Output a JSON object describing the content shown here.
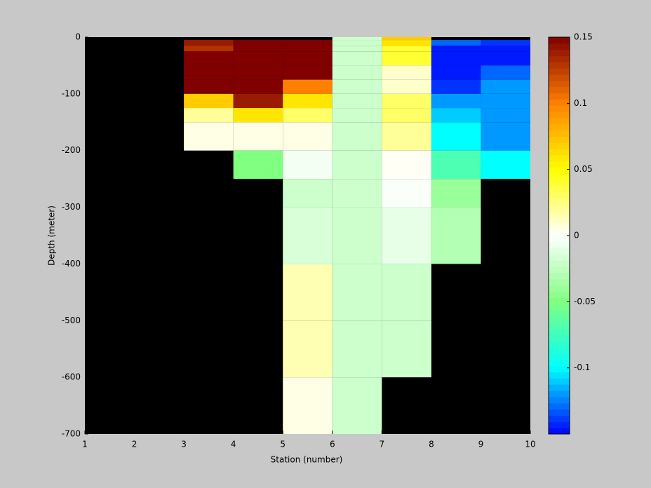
{
  "chart_data": {
    "type": "heatmap",
    "xlabel": "Station (number)",
    "ylabel": "Depth (meter)",
    "x": [
      1,
      2,
      3,
      4,
      5,
      6,
      7,
      8,
      9,
      10
    ],
    "y": [
      0,
      -5,
      -15,
      -25,
      -50,
      -75,
      -100,
      -125,
      -150,
      -200,
      -250,
      -300,
      -350,
      -400,
      -500,
      -600,
      -700
    ],
    "values": [
      [
        null,
        null,
        null,
        null,
        null,
        -0.02,
        0.07,
        null,
        null
      ],
      [
        null,
        null,
        0.14,
        0.15,
        0.15,
        -0.02,
        0.06,
        -0.13,
        -0.14
      ],
      [
        null,
        null,
        0.13,
        0.15,
        0.15,
        -0.02,
        0.04,
        -0.145,
        -0.145
      ],
      [
        null,
        null,
        0.15,
        0.15,
        0.15,
        -0.02,
        0.04,
        -0.145,
        -0.145
      ],
      [
        null,
        null,
        0.15,
        0.15,
        0.15,
        -0.02,
        0.01,
        -0.145,
        -0.13
      ],
      [
        null,
        null,
        0.15,
        0.15,
        0.1,
        -0.02,
        0.01,
        -0.14,
        -0.12
      ],
      [
        null,
        null,
        0.07,
        0.14,
        0.06,
        -0.02,
        0.03,
        -0.12,
        -0.12
      ],
      [
        null,
        null,
        0.02,
        0.06,
        0.03,
        -0.02,
        0.03,
        -0.11,
        -0.12
      ],
      [
        null,
        null,
        0.005,
        0.005,
        0.005,
        -0.02,
        0.02,
        -0.1,
        -0.12
      ],
      [
        null,
        null,
        null,
        -0.05,
        -0.005,
        -0.02,
        0.002,
        -0.07,
        -0.1
      ],
      [
        null,
        null,
        null,
        null,
        -0.02,
        -0.02,
        -0.002,
        -0.04,
        null
      ],
      [
        null,
        null,
        null,
        null,
        -0.015,
        -0.02,
        -0.01,
        -0.03,
        null
      ],
      [
        null,
        null,
        null,
        null,
        -0.015,
        -0.02,
        -0.01,
        -0.03,
        null
      ],
      [
        null,
        null,
        null,
        null,
        0.015,
        -0.02,
        -0.02,
        null,
        null
      ],
      [
        null,
        null,
        null,
        null,
        0.015,
        -0.02,
        -0.02,
        null,
        null
      ],
      [
        null,
        null,
        null,
        null,
        0.005,
        -0.02,
        null,
        null,
        null
      ]
    ],
    "xlim": [
      1,
      10
    ],
    "ylim": [
      -700,
      0
    ],
    "xticks": [
      1,
      2,
      3,
      4,
      5,
      6,
      7,
      8,
      9,
      10
    ],
    "yticks": [
      -700,
      -600,
      -500,
      -400,
      -300,
      -200,
      -100,
      0
    ],
    "clim": [
      -0.15,
      0.15
    ],
    "cticks": [
      -0.1,
      -0.05,
      0,
      0.05,
      0.1,
      0.15
    ],
    "colormap": [
      "#0000ff",
      "#00ffff",
      "#80ff80",
      "#ffffff",
      "#ffff00",
      "#ff8000",
      "#800000"
    ],
    "missing_color": "#000000"
  }
}
